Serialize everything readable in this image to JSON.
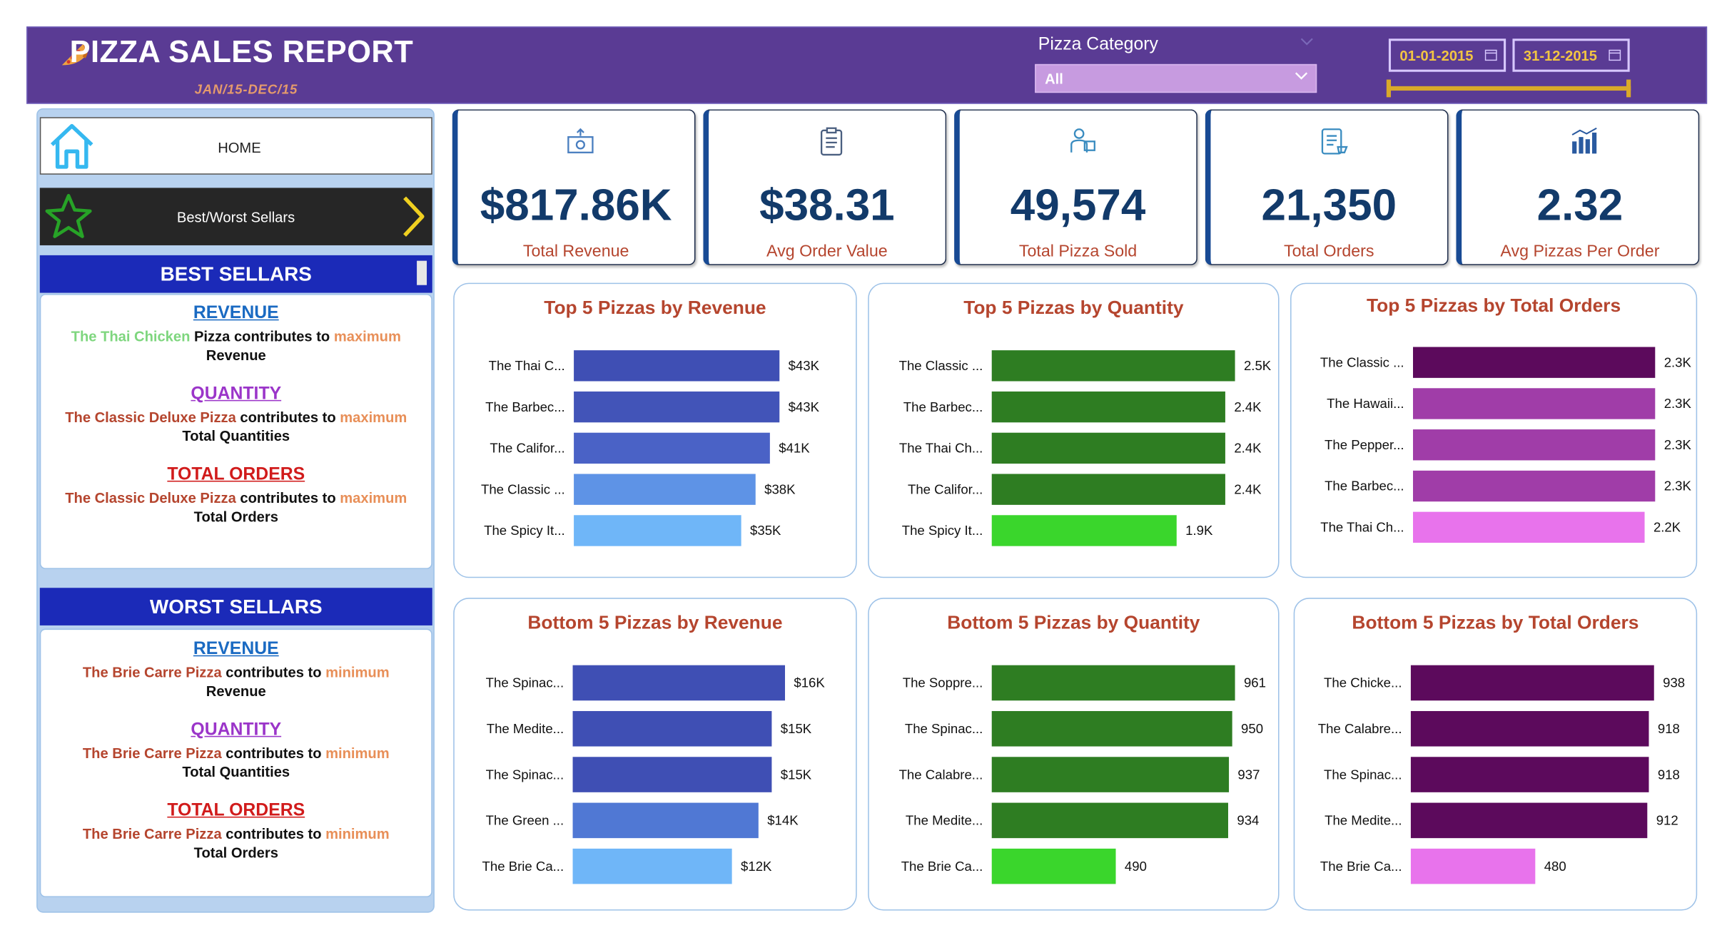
{
  "header": {
    "title": "PIZZA SALES REPORT",
    "subtitle": "JAN/15-DEC/15",
    "category_label": "Pizza Category",
    "category_value": "All",
    "date_start": "01-01-2015",
    "date_end": "31-12-2015",
    "bg_color": "#5a3b94"
  },
  "nav": {
    "home_label": "HOME",
    "best_worst_label": "Best/Worst Sellars"
  },
  "best": {
    "heading": "BEST SELLARS",
    "revenue": {
      "title": "REVENUE",
      "pizza": "The Thai Chicken",
      "mid1": " Pizza contributes to ",
      "extreme": "maximum",
      "tail": "Revenue"
    },
    "quantity": {
      "title": "QUANTITY",
      "pizza": "The Classic Deluxe Pizza",
      "mid1": " contributes to ",
      "extreme": "maximum",
      "tail": "Total Quantities"
    },
    "orders": {
      "title": "TOTAL ORDERS",
      "pizza": "The Classic Deluxe Pizza",
      "mid1": " contributes to ",
      "extreme": "maximum",
      "tail": "Total Orders"
    }
  },
  "worst": {
    "heading": "WORST SELLARS",
    "revenue": {
      "title": "REVENUE",
      "pizza": "The Brie Carre Pizza",
      "mid1": " contributes to ",
      "extreme": "minimum",
      "tail": "Revenue"
    },
    "quantity": {
      "title": "QUANTITY",
      "pizza": "The Brie Carre Pizza",
      "mid1": " contributes to ",
      "extreme": "minimum",
      "tail": "Total Quantities"
    },
    "orders": {
      "title": "TOTAL ORDERS",
      "pizza": "The Brie Carre Pizza",
      "mid1": " contributes to ",
      "extreme": "minimum",
      "tail": "Total Orders"
    }
  },
  "kpis": [
    {
      "value": "$817.86K",
      "label": "Total Revenue",
      "icon": "money-icon"
    },
    {
      "value": "$38.31",
      "label": "Avg Order Value",
      "icon": "clipboard-icon"
    },
    {
      "value": "49,574",
      "label": "Total Pizza Sold",
      "icon": "delivery-icon"
    },
    {
      "value": "21,350",
      "label": "Total Orders",
      "icon": "order-list-icon"
    },
    {
      "value": "2.32",
      "label": "Avg Pizzas Per Order",
      "icon": "bar-chart-icon"
    }
  ],
  "chart_data": [
    {
      "type": "bar",
      "orientation": "horizontal",
      "title": "Top 5 Pizzas by Revenue",
      "categories": [
        "The Thai C...",
        "The Barbec...",
        "The Califor...",
        "The Classic ...",
        "The Spicy It..."
      ],
      "values": [
        43,
        43,
        41,
        38,
        35
      ],
      "value_labels": [
        "$43K",
        "$43K",
        "$41K",
        "$38K",
        "$35K"
      ],
      "colors": [
        "#3f4fb4",
        "#4254b8",
        "#4a62c6",
        "#5e93e6",
        "#6fb6f8"
      ]
    },
    {
      "type": "bar",
      "orientation": "horizontal",
      "title": "Top 5 Pizzas by Quantity",
      "categories": [
        "The Classic ...",
        "The Barbec...",
        "The Thai Ch...",
        "The Califor...",
        "The Spicy It..."
      ],
      "values": [
        2.5,
        2.4,
        2.4,
        2.4,
        1.9
      ],
      "value_labels": [
        "2.5K",
        "2.4K",
        "2.4K",
        "2.4K",
        "1.9K"
      ],
      "colors": [
        "#2e7d22",
        "#2e7d22",
        "#2e7d22",
        "#2e7d22",
        "#3ad62c"
      ]
    },
    {
      "type": "bar",
      "orientation": "horizontal",
      "title": "Top 5 Pizzas by Total Orders",
      "categories": [
        "The Classic ...",
        "The Hawaii...",
        "The Pepper...",
        "The Barbec...",
        "The Thai Ch..."
      ],
      "values": [
        2.3,
        2.3,
        2.3,
        2.3,
        2.2
      ],
      "value_labels": [
        "2.3K",
        "2.3K",
        "2.3K",
        "2.3K",
        "2.2K"
      ],
      "colors": [
        "#5c0a5c",
        "#a03da8",
        "#a03da8",
        "#a03da8",
        "#e873ec"
      ]
    },
    {
      "type": "bar",
      "orientation": "horizontal",
      "title": "Bottom 5 Pizzas by Revenue",
      "categories": [
        "The Spinac...",
        "The Medite...",
        "The Spinac...",
        "The Green ...",
        "The Brie Ca..."
      ],
      "values": [
        16,
        15,
        15,
        14,
        12
      ],
      "value_labels": [
        "$16K",
        "$15K",
        "$15K",
        "$14K",
        "$12K"
      ],
      "colors": [
        "#3f4fb4",
        "#3f4fb4",
        "#3f4fb4",
        "#5078d4",
        "#6fb6f8"
      ]
    },
    {
      "type": "bar",
      "orientation": "horizontal",
      "title": "Bottom 5 Pizzas by Quantity",
      "categories": [
        "The Soppre...",
        "The Spinac...",
        "The Calabre...",
        "The Medite...",
        "The Brie Ca..."
      ],
      "values": [
        961,
        950,
        937,
        934,
        490
      ],
      "value_labels": [
        "961",
        "950",
        "937",
        "934",
        "490"
      ],
      "colors": [
        "#2e7d22",
        "#2e7d22",
        "#2e7d22",
        "#2e7d22",
        "#3ad62c"
      ]
    },
    {
      "type": "bar",
      "orientation": "horizontal",
      "title": "Bottom 5 Pizzas by Total Orders",
      "categories": [
        "The Chicke...",
        "The Calabre...",
        "The Spinac...",
        "The Medite...",
        "The Brie Ca..."
      ],
      "values": [
        938,
        918,
        918,
        912,
        480
      ],
      "value_labels": [
        "938",
        "918",
        "918",
        "912",
        "480"
      ],
      "colors": [
        "#5c0a5c",
        "#5c0a5c",
        "#5c0a5c",
        "#5c0a5c",
        "#e873ec"
      ]
    }
  ]
}
